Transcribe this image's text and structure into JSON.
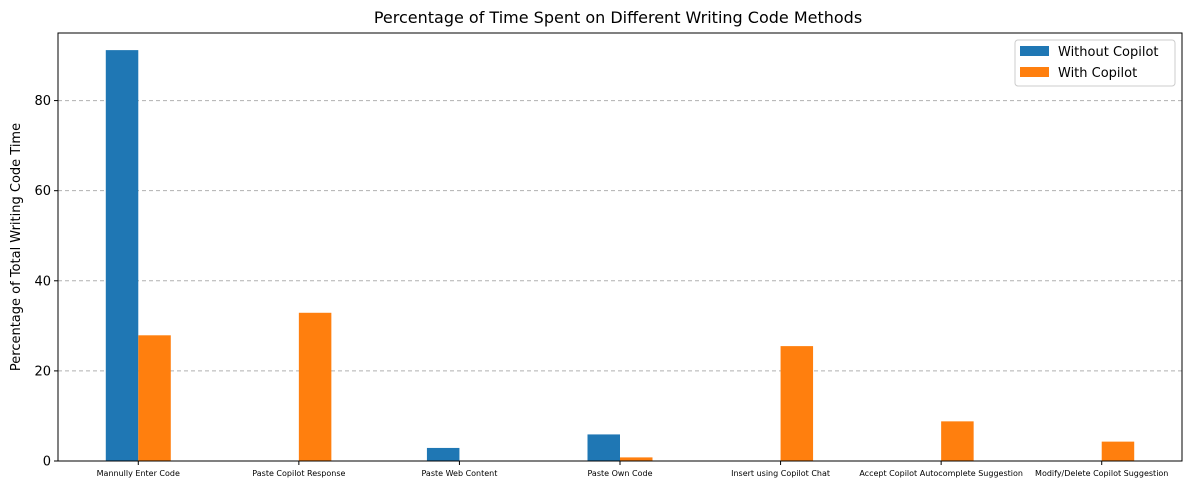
{
  "chart_data": {
    "type": "bar",
    "title": "Percentage of Time Spent on Different Writing Code Methods",
    "xlabel": "",
    "ylabel": "Percentage of Total Writing Code Time",
    "ylim": [
      0,
      95
    ],
    "yticks": [
      0,
      20,
      40,
      60,
      80
    ],
    "grid": "y-dashed",
    "legend_position": "top-right",
    "categories": [
      "Mannully Enter Code",
      "Paste Copilot Response",
      "Paste Web Content",
      "Paste Own Code",
      "Insert using Copilot Chat",
      "Accept Copilot Autocomplete Suggestion",
      "Modify/Delete Copilot Suggestion"
    ],
    "series": [
      {
        "name": "Without Copilot",
        "color": "#1f77b4",
        "values": [
          91.2,
          0,
          2.9,
          5.9,
          0,
          0,
          0
        ]
      },
      {
        "name": "With Copilot",
        "color": "#ff7f0e",
        "values": [
          27.9,
          32.9,
          0,
          0.8,
          25.5,
          8.8,
          4.3
        ]
      }
    ]
  }
}
